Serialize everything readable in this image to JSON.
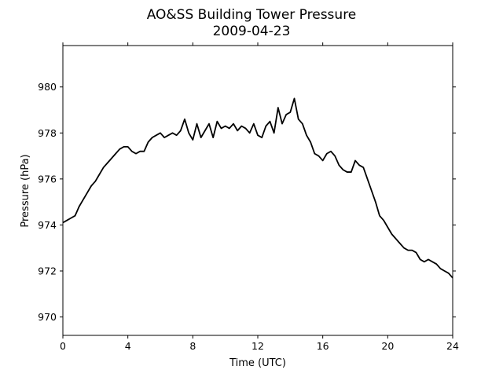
{
  "chart_data": {
    "type": "line",
    "title": "AO&SS Building Tower Pressure",
    "subtitle": "2009-04-23",
    "xlabel": "Time (UTC)",
    "ylabel": "Pressure (hPa)",
    "xlim": [
      0,
      24
    ],
    "ylim": [
      969.2,
      981.8
    ],
    "xticks": [
      0,
      4,
      8,
      12,
      16,
      20,
      24
    ],
    "yticks": [
      970,
      972,
      974,
      976,
      978,
      980
    ],
    "grid": false,
    "line_color": "#000000",
    "series": [
      {
        "x": [
          0,
          0.25,
          0.5,
          0.75,
          1.0,
          1.25,
          1.5,
          1.75,
          2.0,
          2.25,
          2.5,
          2.75,
          3.0,
          3.25,
          3.5,
          3.75,
          4.0,
          4.25,
          4.5,
          4.75,
          5.0,
          5.25,
          5.5,
          5.75,
          6.0,
          6.25,
          6.5,
          6.75,
          7.0,
          7.25,
          7.5,
          7.75,
          8.0,
          8.25,
          8.5,
          8.75,
          9.0,
          9.25,
          9.5,
          9.75,
          10.0,
          10.25,
          10.5,
          10.75,
          11.0,
          11.25,
          11.5,
          11.75,
          12.0,
          12.25,
          12.5,
          12.75,
          13.0,
          13.25,
          13.5,
          13.75,
          14.0,
          14.25,
          14.5,
          14.75,
          15.0,
          15.25,
          15.5,
          15.75,
          16.0,
          16.25,
          16.5,
          16.75,
          17.0,
          17.25,
          17.5,
          17.75,
          18.0,
          18.25,
          18.5,
          18.75,
          19.0,
          19.25,
          19.5,
          19.75,
          20.0,
          20.25,
          20.5,
          20.75,
          21.0,
          21.25,
          21.5,
          21.75,
          22.0,
          22.25,
          22.5,
          22.75,
          23.0,
          23.25,
          23.5,
          23.75,
          24.0
        ],
        "y": [
          974.1,
          974.2,
          974.3,
          974.4,
          974.8,
          975.1,
          975.4,
          975.7,
          975.9,
          976.2,
          976.5,
          976.7,
          976.9,
          977.1,
          977.3,
          977.4,
          977.4,
          977.2,
          977.1,
          977.2,
          977.2,
          977.6,
          977.8,
          977.9,
          978.0,
          977.8,
          977.9,
          978.0,
          977.9,
          978.1,
          978.6,
          978.0,
          977.7,
          978.4,
          977.8,
          978.1,
          978.4,
          977.8,
          978.5,
          978.2,
          978.3,
          978.2,
          978.4,
          978.1,
          978.3,
          978.2,
          978.0,
          978.4,
          977.9,
          977.8,
          978.3,
          978.5,
          978.0,
          979.1,
          978.4,
          978.8,
          978.9,
          979.5,
          978.6,
          978.4,
          977.9,
          977.6,
          977.1,
          977.0,
          976.8,
          977.1,
          977.2,
          977.0,
          976.6,
          976.4,
          976.3,
          976.3,
          976.8,
          976.6,
          976.5,
          976.0,
          975.5,
          975.0,
          974.4,
          974.2,
          973.9,
          973.6,
          973.4,
          973.2,
          973.0,
          972.9,
          972.9,
          972.8,
          972.5,
          972.4,
          972.5,
          972.4,
          972.3,
          972.1,
          972.0,
          971.9,
          971.7
        ]
      }
    ]
  }
}
